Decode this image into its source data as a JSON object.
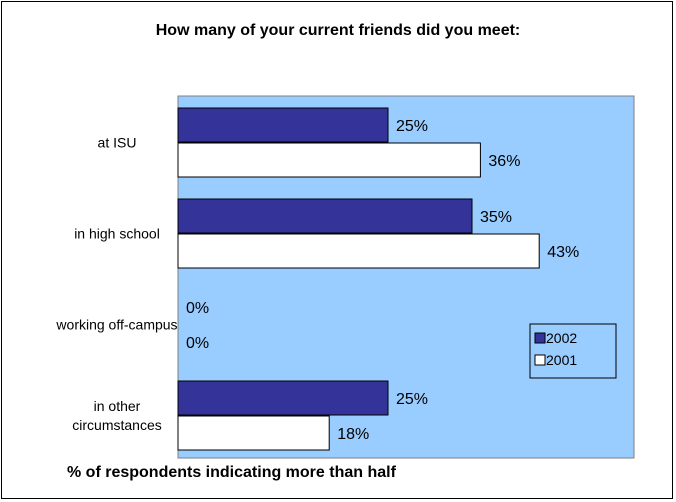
{
  "chart_data": {
    "type": "bar",
    "orientation": "horizontal",
    "title": "How many of your current friends did you meet:",
    "xlabel": "% of respondents indicating more than half",
    "ylabel": "",
    "categories": [
      "at ISU",
      "in high school",
      "working off-campus",
      "in other circumstances"
    ],
    "series": [
      {
        "name": "2002",
        "values": [
          25,
          35,
          0,
          25
        ],
        "labels": [
          "25%",
          "35%",
          "0%",
          "25%"
        ],
        "color": "#333399"
      },
      {
        "name": "2001",
        "values": [
          36,
          43,
          0,
          18
        ],
        "labels": [
          "36%",
          "43%",
          "0%",
          "18%"
        ],
        "color": "#ffffff"
      }
    ],
    "xlim": [
      0,
      60
    ],
    "plot_background": "#99ccff",
    "grid": false,
    "legend_position": "right"
  }
}
